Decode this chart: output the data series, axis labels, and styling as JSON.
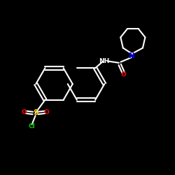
{
  "background_color": "#000000",
  "bond_color": "#ffffff",
  "N_color": "#0000ff",
  "O_color": "#ff0000",
  "S_color": "#ffcc00",
  "Cl_color": "#00cc00",
  "line_width": 1.5,
  "font_size": 6.5,
  "fig_size": [
    2.5,
    2.5
  ],
  "dpi": 100,
  "xlim": [
    0,
    10
  ],
  "ylim": [
    0,
    10
  ]
}
